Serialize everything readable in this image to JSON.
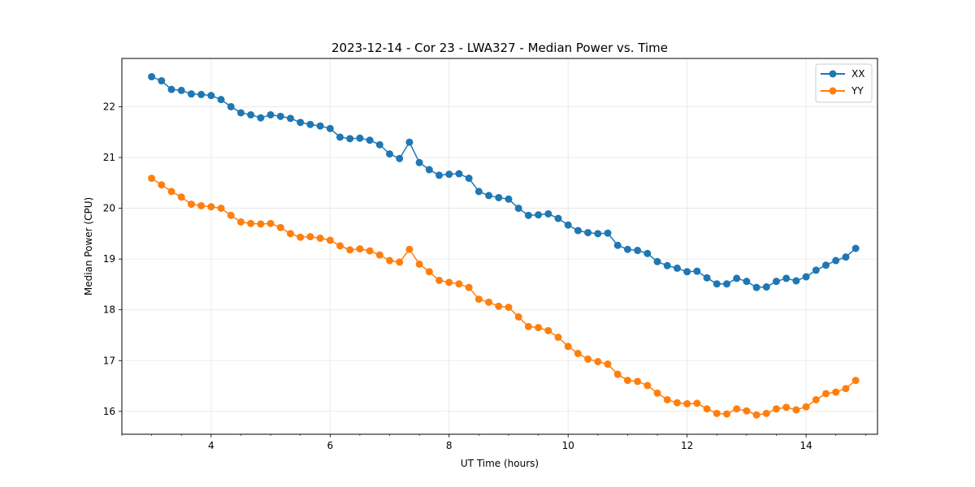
{
  "chart_data": {
    "type": "line",
    "title": "2023-12-14 - Cor 23 - LWA327 - Median Power vs. Time",
    "xlabel": "UT Time (hours)",
    "ylabel": "Median Power (CPU)",
    "xlim": [
      2.5,
      15.2
    ],
    "ylim": [
      15.55,
      22.95
    ],
    "xticks": [
      4,
      6,
      8,
      10,
      12,
      14
    ],
    "xtick_labels": [
      "4",
      "6",
      "8",
      "10",
      "12",
      "14"
    ],
    "xminor_step": 0.5,
    "yticks": [
      16,
      17,
      18,
      19,
      20,
      21,
      22
    ],
    "ytick_labels": [
      "16",
      "17",
      "18",
      "19",
      "20",
      "21",
      "22"
    ],
    "grid": true,
    "legend_position": "top-right",
    "series": [
      {
        "name": "XX",
        "color": "#1f77b4",
        "x": [
          3.0,
          3.1667,
          3.3333,
          3.5,
          3.6667,
          3.8333,
          4.0,
          4.1667,
          4.3333,
          4.5,
          4.6667,
          4.8333,
          5.0,
          5.1667,
          5.3333,
          5.5,
          5.6667,
          5.8333,
          6.0,
          6.1667,
          6.3333,
          6.5,
          6.6667,
          6.8333,
          7.0,
          7.1667,
          7.3333,
          7.5,
          7.6667,
          7.8333,
          8.0,
          8.1667,
          8.3333,
          8.5,
          8.6667,
          8.8333,
          9.0,
          9.1667,
          9.3333,
          9.5,
          9.6667,
          9.8333,
          10.0,
          10.1667,
          10.3333,
          10.5,
          10.6667,
          10.8333,
          11.0,
          11.1667,
          11.3333,
          11.5,
          11.6667,
          11.8333,
          12.0,
          12.1667,
          12.3333,
          12.5,
          12.6667,
          12.8333,
          13.0,
          13.1667,
          13.3333,
          13.5,
          13.6667,
          13.8333,
          14.0,
          14.1667,
          14.3333,
          14.5,
          14.6667,
          14.8333
        ],
        "values": [
          22.59,
          22.51,
          22.34,
          22.32,
          22.25,
          22.24,
          22.22,
          22.14,
          22.0,
          21.88,
          21.84,
          21.78,
          21.84,
          21.81,
          21.77,
          21.69,
          21.65,
          21.62,
          21.57,
          21.4,
          21.37,
          21.38,
          21.34,
          21.25,
          21.07,
          20.98,
          21.3,
          20.9,
          20.76,
          20.65,
          20.67,
          20.68,
          20.59,
          20.33,
          20.25,
          20.21,
          20.18,
          20.0,
          19.86,
          19.87,
          19.89,
          19.8,
          19.67,
          19.56,
          19.52,
          19.5,
          19.51,
          19.27,
          19.19,
          19.17,
          19.11,
          18.95,
          18.87,
          18.82,
          18.75,
          18.76,
          18.63,
          18.51,
          18.51,
          18.62,
          18.56,
          18.44,
          18.45,
          18.56,
          18.62,
          18.57,
          18.65,
          18.78,
          18.88,
          18.97,
          19.04,
          19.21
        ]
      },
      {
        "name": "YY",
        "color": "#ff7f0e",
        "x": [
          3.0,
          3.1667,
          3.3333,
          3.5,
          3.6667,
          3.8333,
          4.0,
          4.1667,
          4.3333,
          4.5,
          4.6667,
          4.8333,
          5.0,
          5.1667,
          5.3333,
          5.5,
          5.6667,
          5.8333,
          6.0,
          6.1667,
          6.3333,
          6.5,
          6.6667,
          6.8333,
          7.0,
          7.1667,
          7.3333,
          7.5,
          7.6667,
          7.8333,
          8.0,
          8.1667,
          8.3333,
          8.5,
          8.6667,
          8.8333,
          9.0,
          9.1667,
          9.3333,
          9.5,
          9.6667,
          9.8333,
          10.0,
          10.1667,
          10.3333,
          10.5,
          10.6667,
          10.8333,
          11.0,
          11.1667,
          11.3333,
          11.5,
          11.6667,
          11.8333,
          12.0,
          12.1667,
          12.3333,
          12.5,
          12.6667,
          12.8333,
          13.0,
          13.1667,
          13.3333,
          13.5,
          13.6667,
          13.8333,
          14.0,
          14.1667,
          14.3333,
          14.5,
          14.6667,
          14.8333
        ],
        "values": [
          20.59,
          20.46,
          20.33,
          20.22,
          20.08,
          20.05,
          20.03,
          20.0,
          19.86,
          19.73,
          19.7,
          19.69,
          19.7,
          19.62,
          19.5,
          19.43,
          19.44,
          19.41,
          19.37,
          19.26,
          19.18,
          19.2,
          19.16,
          19.08,
          18.97,
          18.94,
          19.19,
          18.9,
          18.75,
          18.58,
          18.54,
          18.51,
          18.44,
          18.21,
          18.15,
          18.07,
          18.05,
          17.86,
          17.67,
          17.65,
          17.59,
          17.46,
          17.28,
          17.14,
          17.03,
          16.98,
          16.93,
          16.73,
          16.61,
          16.59,
          16.51,
          16.36,
          16.23,
          16.17,
          16.15,
          16.16,
          16.05,
          15.96,
          15.95,
          16.05,
          16.01,
          15.93,
          15.96,
          16.05,
          16.08,
          16.03,
          16.09,
          16.23,
          16.35,
          16.38,
          16.45,
          16.61
        ]
      }
    ]
  }
}
